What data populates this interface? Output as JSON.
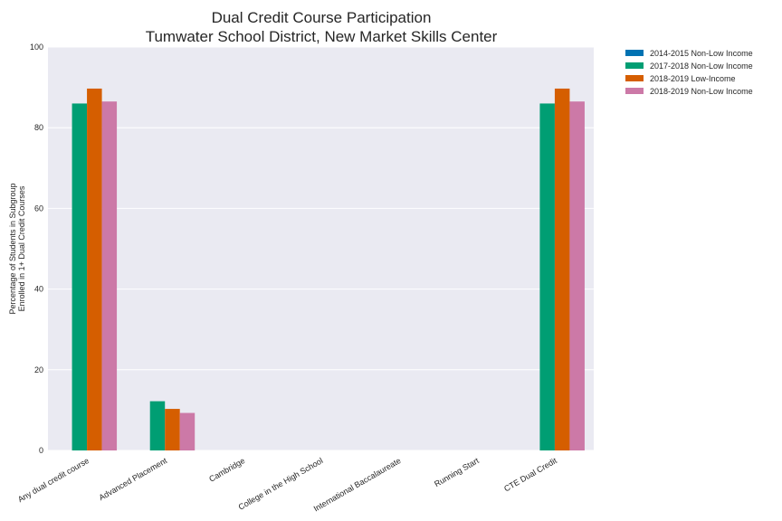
{
  "chart_data": {
    "type": "bar",
    "title_line1": "Dual Credit Course Participation",
    "title_line2": "Tumwater School District, New Market Skills Center",
    "ylabel_line1": "Percentage of Students in Subgroup",
    "ylabel_line2": "Enrolled in 1+ Dual Credit Courses",
    "ylim": [
      0,
      100
    ],
    "yticks": [
      0,
      20,
      40,
      60,
      80,
      100
    ],
    "grid": true,
    "legend_position": "top-right outside",
    "categories": [
      "Any dual credit course",
      "Advanced Placement",
      "Cambridge",
      "College in the High School",
      "International Baccalaureate",
      "Running Start",
      "CTE Dual Credit"
    ],
    "series": [
      {
        "name": "2014-2015 Non-Low Income",
        "color": "#0072b2",
        "values": [
          0,
          0,
          0,
          0,
          0,
          0,
          0
        ]
      },
      {
        "name": "2017-2018 Non-Low Income",
        "color": "#009e73",
        "values": [
          86,
          12.2,
          0,
          0,
          0,
          0,
          86
        ]
      },
      {
        "name": "2018-2019 Low-Income",
        "color": "#d55e00",
        "values": [
          89.7,
          10.3,
          0,
          0,
          0,
          0,
          89.7
        ]
      },
      {
        "name": "2018-2019 Non-Low Income",
        "color": "#cc79a7",
        "values": [
          86.5,
          9.3,
          0,
          0,
          0,
          0,
          86.5
        ]
      }
    ]
  }
}
